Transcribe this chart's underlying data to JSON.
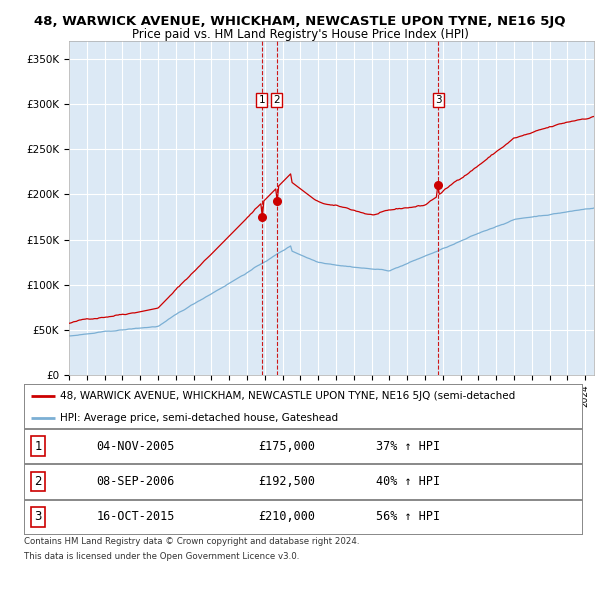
{
  "title": "48, WARWICK AVENUE, WHICKHAM, NEWCASTLE UPON TYNE, NE16 5JQ",
  "subtitle": "Price paid vs. HM Land Registry's House Price Index (HPI)",
  "ylim": [
    0,
    370000
  ],
  "yticks": [
    0,
    50000,
    100000,
    150000,
    200000,
    250000,
    300000,
    350000
  ],
  "ytick_labels": [
    "£0",
    "£50K",
    "£100K",
    "£150K",
    "£200K",
    "£250K",
    "£300K",
    "£350K"
  ],
  "plot_bg_color": "#dce9f5",
  "grid_color": "#ffffff",
  "red_line_color": "#cc0000",
  "blue_line_color": "#7bafd4",
  "vline_color": "#cc0000",
  "marker_color": "#cc0000",
  "legend_red_label": "48, WARWICK AVENUE, WHICKHAM, NEWCASTLE UPON TYNE, NE16 5JQ (semi-detached",
  "legend_blue_label": "HPI: Average price, semi-detached house, Gateshead",
  "sale1_date": "04-NOV-2005",
  "sale1_price": 175000,
  "sale1_pct": "37%",
  "sale2_date": "08-SEP-2006",
  "sale2_price": 192500,
  "sale2_pct": "40%",
  "sale3_date": "16-OCT-2015",
  "sale3_price": 210000,
  "sale3_pct": "56%",
  "footnote1": "Contains HM Land Registry data © Crown copyright and database right 2024.",
  "footnote2": "This data is licensed under the Open Government Licence v3.0."
}
